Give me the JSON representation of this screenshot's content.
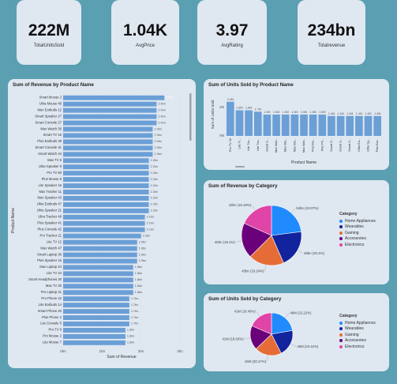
{
  "kpis": [
    {
      "value": "222M",
      "label": "TotalUnitsSold"
    },
    {
      "value": "1.04K",
      "label": "AvgPrice"
    },
    {
      "value": "3.97",
      "label": "AvgRating"
    },
    {
      "value": "234bn",
      "label": "Totalrevenue"
    }
  ],
  "colors": {
    "background": "#5a9fb2",
    "panel": "#dfe7f1",
    "bar": "#6b9fd6",
    "Home Appliances": "#1f8bff",
    "Wearables": "#12239e",
    "Gaming": "#e66c37",
    "Accessories": "#6b007b",
    "Electronics": "#e044a7"
  },
  "revenue_by_product": {
    "title": "Sum of Revenue by Product Name",
    "xlabel": "Sum of Revenue",
    "ylabel": "Product Name",
    "ticks": [
      "0bn",
      "1bn",
      "2bn",
      "3bn"
    ],
    "chart_data": {
      "type": "bar",
      "orientation": "horizontal",
      "xlim": [
        0,
        3
      ],
      "categories": [
        "Smart Mouse 2",
        "Ultra Mouse 46",
        "Max Earbuds 12",
        "Smart Speaker 27",
        "Smart Console 27",
        "Max Watch 36",
        "Smart TV 16",
        "Plus Earbuds 38",
        "Smart Console 31",
        "Smart Watch 44",
        "Max TV 5",
        "Ultra Speaker 9",
        "Pro TV 50",
        "Plus Mouse 8",
        "Lite Speaker 15",
        "Max Tracker 11",
        "Max Speaker 43",
        "Ultra Earbuds 47",
        "Ultra Speaker 21",
        "Ultra Tracker 49",
        "Plus Speaker 41",
        "Plus Console 42",
        "Pro Tracker 21",
        "Lite TV 12",
        "Max Watch 47",
        "Smart Laptop 36",
        "Plus Speaker 15",
        "Max Laptop 24",
        "Lite TV 24",
        "Smart Headphones 30",
        "Max TV 30",
        "Pro Laptop 41",
        "Pro Phone 42",
        "Lite Earbuds 14",
        "Smart Phone 20",
        "Plus Phone 2",
        "Lite Console 5",
        "Pro TV 9",
        "Pro Mouse 2",
        "Lite Mouse 7"
      ],
      "values": [
        2.6,
        2.4,
        2.4,
        2.4,
        2.4,
        2.3,
        2.3,
        2.3,
        2.3,
        2.3,
        2.2,
        2.2,
        2.2,
        2.2,
        2.2,
        2.2,
        2.2,
        2.2,
        2.2,
        2.1,
        2.1,
        2.1,
        2.0,
        1.9,
        1.9,
        1.9,
        1.9,
        1.8,
        1.8,
        1.8,
        1.8,
        1.8,
        1.7,
        1.7,
        1.7,
        1.7,
        1.7,
        1.6,
        1.6,
        1.6
      ],
      "labels": [
        "2.6bn",
        "2.4bn",
        "2.4bn",
        "2.4bn",
        "2.4bn",
        "2.3bn",
        "2.3bn",
        "2.3bn",
        "2.3bn",
        "2.3bn",
        "2.2bn",
        "2.2bn",
        "2.2bn",
        "2.2bn",
        "2.2bn",
        "2.2bn",
        "2.2bn",
        "2.2bn",
        "2.2bn",
        "2.1bn",
        "2.1bn",
        "2.1bn",
        "2.0bn",
        "1.9bn",
        "1.9bn",
        "1.9bn",
        "1.9bn",
        "1.8bn",
        "1.8bn",
        "1.8bn",
        "1.8bn",
        "1.8bn",
        "1.7bn",
        "1.7bn",
        "1.7bn",
        "1.7bn",
        "1.7bn",
        "1.6bn",
        "1.6bn",
        "1.6bn"
      ]
    }
  },
  "units_by_product": {
    "title": "Sum of Units Sold by Product Name",
    "xlabel": "Product Name",
    "ylabel": "Sum of Units Sold",
    "ticks": [
      "0M",
      "2M"
    ],
    "chart_data": {
      "type": "bar",
      "orientation": "vertical",
      "ylim": [
        0,
        3
      ],
      "categories": [
        "Pro TV 40",
        "Lite Tr...",
        "Lite Tra...",
        "Lite Tra...",
        "Smart S...",
        "Max Wat...",
        "Max Wa...",
        "Max Wa...",
        "Max Wat...",
        "Plus Mo...",
        "Plus Ph...",
        "Smart S...",
        "Smart S...",
        "Smart S...",
        "Ultra Ea...",
        "Ultra Sp...",
        "Plus Ear..."
      ],
      "values": [
        2.4,
        1.8,
        1.8,
        1.7,
        1.5,
        1.5,
        1.5,
        1.5,
        1.5,
        1.5,
        1.5,
        1.4,
        1.4,
        1.4,
        1.4,
        1.4,
        1.4
      ],
      "labels": [
        "2.4M",
        "1.8M",
        "1.8M",
        "1.7M",
        "1.5M",
        "1.5M",
        "1.5M",
        "1.5M",
        "1.5M",
        "1.5M",
        "1.5M",
        "1.4M",
        "1.4M",
        "1.4M",
        "1.4M",
        "1.4M",
        "1.4M"
      ]
    }
  },
  "revenue_by_category": {
    "title": "Sum of Revenue by Category",
    "legend_title": "Category",
    "chart_data": {
      "type": "pie",
      "categories": [
        "Home Appliances",
        "Wearables",
        "Gaming",
        "Accessories",
        "Electronics"
      ],
      "values": [
        54,
        48,
        45,
        45,
        43
      ],
      "labels": [
        "54bn (23.07%)",
        "48bn (20.4%)",
        "45bn (19.24%)",
        "45bn (19.1%)",
        "43bn (18.18%)"
      ]
    }
  },
  "units_by_category": {
    "title": "Sum of Units Sold by Category",
    "legend_title": "Category",
    "chart_data": {
      "type": "pie",
      "categories": [
        "Home Appliances",
        "Wearables",
        "Gaming",
        "Accessories",
        "Electronics"
      ],
      "values": [
        49,
        45,
        45,
        41,
        41
      ],
      "labels": [
        "49M (22.22%)",
        "45M (20.42%)",
        "45M (20.27%)",
        "41M (18.63%)",
        "41M (18.46%)"
      ]
    }
  }
}
